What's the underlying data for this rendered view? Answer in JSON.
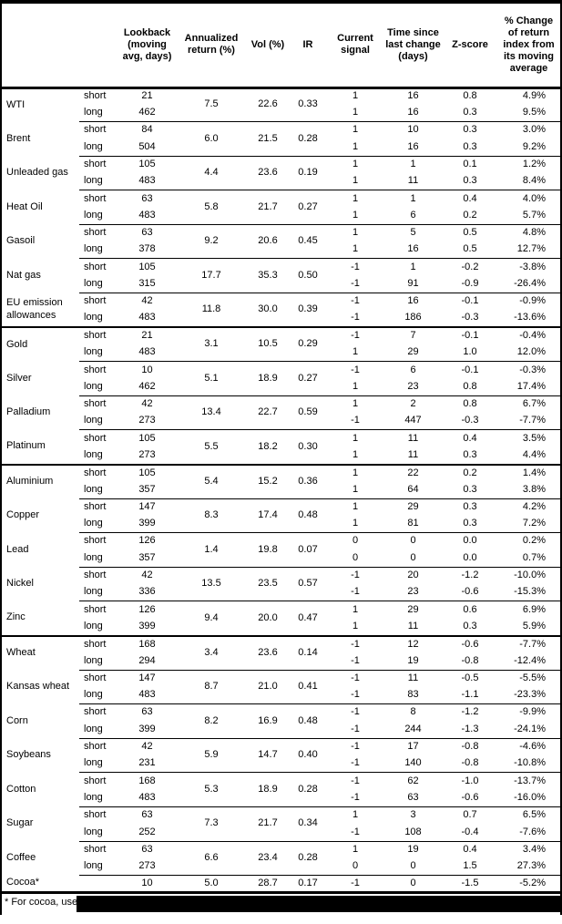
{
  "colors": {
    "text": "#000000",
    "border": "#000000",
    "background": "#ffffff",
    "redaction": "#000000"
  },
  "header": {
    "columns": [
      "",
      "",
      "Lookback (moving avg, days)",
      "Annualized return (%)",
      "Vol (%)",
      "IR",
      "Current signal",
      "Time since last change (days)",
      "Z-score",
      "% Change of return index from its moving average"
    ]
  },
  "sections": [
    {
      "name": "energy",
      "commodities": [
        {
          "name": "WTI",
          "annualized_return_pct": "7.5",
          "vol_pct": "22.6",
          "ir": "0.33",
          "legs": [
            {
              "horizon": "short",
              "lookback": "21",
              "signal": "1",
              "days_since_change": "16",
              "z_score": "0.8",
              "pct_change": "4.9%"
            },
            {
              "horizon": "long",
              "lookback": "462",
              "signal": "1",
              "days_since_change": "16",
              "z_score": "0.3",
              "pct_change": "9.5%"
            }
          ]
        },
        {
          "name": "Brent",
          "annualized_return_pct": "6.0",
          "vol_pct": "21.5",
          "ir": "0.28",
          "legs": [
            {
              "horizon": "short",
              "lookback": "84",
              "signal": "1",
              "days_since_change": "10",
              "z_score": "0.3",
              "pct_change": "3.0%"
            },
            {
              "horizon": "long",
              "lookback": "504",
              "signal": "1",
              "days_since_change": "16",
              "z_score": "0.3",
              "pct_change": "9.2%"
            }
          ]
        },
        {
          "name": "Unleaded gas",
          "annualized_return_pct": "4.4",
          "vol_pct": "23.6",
          "ir": "0.19",
          "legs": [
            {
              "horizon": "short",
              "lookback": "105",
              "signal": "1",
              "days_since_change": "1",
              "z_score": "0.1",
              "pct_change": "1.2%"
            },
            {
              "horizon": "long",
              "lookback": "483",
              "signal": "1",
              "days_since_change": "11",
              "z_score": "0.3",
              "pct_change": "8.4%"
            }
          ]
        },
        {
          "name": "Heat Oil",
          "annualized_return_pct": "5.8",
          "vol_pct": "21.7",
          "ir": "0.27",
          "legs": [
            {
              "horizon": "short",
              "lookback": "63",
              "signal": "1",
              "days_since_change": "1",
              "z_score": "0.4",
              "pct_change": "4.0%"
            },
            {
              "horizon": "long",
              "lookback": "483",
              "signal": "1",
              "days_since_change": "6",
              "z_score": "0.2",
              "pct_change": "5.7%"
            }
          ]
        },
        {
          "name": "Gasoil",
          "annualized_return_pct": "9.2",
          "vol_pct": "20.6",
          "ir": "0.45",
          "legs": [
            {
              "horizon": "short",
              "lookback": "63",
              "signal": "1",
              "days_since_change": "5",
              "z_score": "0.5",
              "pct_change": "4.8%"
            },
            {
              "horizon": "long",
              "lookback": "378",
              "signal": "1",
              "days_since_change": "16",
              "z_score": "0.5",
              "pct_change": "12.7%"
            }
          ]
        },
        {
          "name": "Nat gas",
          "annualized_return_pct": "17.7",
          "vol_pct": "35.3",
          "ir": "0.50",
          "legs": [
            {
              "horizon": "short",
              "lookback": "105",
              "signal": "-1",
              "days_since_change": "1",
              "z_score": "-0.2",
              "pct_change": "-3.8%"
            },
            {
              "horizon": "long",
              "lookback": "315",
              "signal": "-1",
              "days_since_change": "91",
              "z_score": "-0.9",
              "pct_change": "-26.4%"
            }
          ]
        },
        {
          "name": "EU emission allowances",
          "annualized_return_pct": "11.8",
          "vol_pct": "30.0",
          "ir": "0.39",
          "legs": [
            {
              "horizon": "short",
              "lookback": "42",
              "signal": "-1",
              "days_since_change": "16",
              "z_score": "-0.1",
              "pct_change": "-0.9%"
            },
            {
              "horizon": "long",
              "lookback": "483",
              "signal": "-1",
              "days_since_change": "186",
              "z_score": "-0.3",
              "pct_change": "-13.6%"
            }
          ]
        }
      ]
    },
    {
      "name": "precious-metals",
      "commodities": [
        {
          "name": "Gold",
          "annualized_return_pct": "3.1",
          "vol_pct": "10.5",
          "ir": "0.29",
          "legs": [
            {
              "horizon": "short",
              "lookback": "21",
              "signal": "-1",
              "days_since_change": "7",
              "z_score": "-0.1",
              "pct_change": "-0.4%"
            },
            {
              "horizon": "long",
              "lookback": "483",
              "signal": "1",
              "days_since_change": "29",
              "z_score": "1.0",
              "pct_change": "12.0%"
            }
          ]
        },
        {
          "name": "Silver",
          "annualized_return_pct": "5.1",
          "vol_pct": "18.9",
          "ir": "0.27",
          "legs": [
            {
              "horizon": "short",
              "lookback": "10",
              "signal": "-1",
              "days_since_change": "6",
              "z_score": "-0.1",
              "pct_change": "-0.3%"
            },
            {
              "horizon": "long",
              "lookback": "462",
              "signal": "1",
              "days_since_change": "23",
              "z_score": "0.8",
              "pct_change": "17.4%"
            }
          ]
        },
        {
          "name": "Palladium",
          "annualized_return_pct": "13.4",
          "vol_pct": "22.7",
          "ir": "0.59",
          "legs": [
            {
              "horizon": "short",
              "lookback": "42",
              "signal": "1",
              "days_since_change": "2",
              "z_score": "0.8",
              "pct_change": "6.7%"
            },
            {
              "horizon": "long",
              "lookback": "273",
              "signal": "-1",
              "days_since_change": "447",
              "z_score": "-0.3",
              "pct_change": "-7.7%"
            }
          ]
        },
        {
          "name": "Platinum",
          "annualized_return_pct": "5.5",
          "vol_pct": "18.2",
          "ir": "0.30",
          "legs": [
            {
              "horizon": "short",
              "lookback": "105",
              "signal": "1",
              "days_since_change": "11",
              "z_score": "0.4",
              "pct_change": "3.5%"
            },
            {
              "horizon": "long",
              "lookback": "273",
              "signal": "1",
              "days_since_change": "11",
              "z_score": "0.3",
              "pct_change": "4.4%"
            }
          ]
        }
      ]
    },
    {
      "name": "base-metals",
      "commodities": [
        {
          "name": "Aluminium",
          "annualized_return_pct": "5.4",
          "vol_pct": "15.2",
          "ir": "0.36",
          "legs": [
            {
              "horizon": "short",
              "lookback": "105",
              "signal": "1",
              "days_since_change": "22",
              "z_score": "0.2",
              "pct_change": "1.4%"
            },
            {
              "horizon": "long",
              "lookback": "357",
              "signal": "1",
              "days_since_change": "64",
              "z_score": "0.3",
              "pct_change": "3.8%"
            }
          ]
        },
        {
          "name": "Copper",
          "annualized_return_pct": "8.3",
          "vol_pct": "17.4",
          "ir": "0.48",
          "legs": [
            {
              "horizon": "short",
              "lookback": "147",
              "signal": "1",
              "days_since_change": "29",
              "z_score": "0.3",
              "pct_change": "4.2%"
            },
            {
              "horizon": "long",
              "lookback": "399",
              "signal": "1",
              "days_since_change": "81",
              "z_score": "0.3",
              "pct_change": "7.2%"
            }
          ]
        },
        {
          "name": "Lead",
          "annualized_return_pct": "1.4",
          "vol_pct": "19.8",
          "ir": "0.07",
          "legs": [
            {
              "horizon": "short",
              "lookback": "126",
              "signal": "0",
              "days_since_change": "0",
              "z_score": "0.0",
              "pct_change": "0.2%"
            },
            {
              "horizon": "long",
              "lookback": "357",
              "signal": "0",
              "days_since_change": "0",
              "z_score": "0.0",
              "pct_change": "0.7%"
            }
          ]
        },
        {
          "name": "Nickel",
          "annualized_return_pct": "13.5",
          "vol_pct": "23.5",
          "ir": "0.57",
          "legs": [
            {
              "horizon": "short",
              "lookback": "42",
              "signal": "-1",
              "days_since_change": "20",
              "z_score": "-1.2",
              "pct_change": "-10.0%"
            },
            {
              "horizon": "long",
              "lookback": "336",
              "signal": "-1",
              "days_since_change": "23",
              "z_score": "-0.6",
              "pct_change": "-15.3%"
            }
          ]
        },
        {
          "name": "Zinc",
          "annualized_return_pct": "9.4",
          "vol_pct": "20.0",
          "ir": "0.47",
          "legs": [
            {
              "horizon": "short",
              "lookback": "126",
              "signal": "1",
              "days_since_change": "29",
              "z_score": "0.6",
              "pct_change": "6.9%"
            },
            {
              "horizon": "long",
              "lookback": "399",
              "signal": "1",
              "days_since_change": "11",
              "z_score": "0.3",
              "pct_change": "5.9%"
            }
          ]
        }
      ]
    },
    {
      "name": "agriculture",
      "commodities": [
        {
          "name": "Wheat",
          "annualized_return_pct": "3.4",
          "vol_pct": "23.6",
          "ir": "0.14",
          "legs": [
            {
              "horizon": "short",
              "lookback": "168",
              "signal": "-1",
              "days_since_change": "12",
              "z_score": "-0.6",
              "pct_change": "-7.7%"
            },
            {
              "horizon": "long",
              "lookback": "294",
              "signal": "-1",
              "days_since_change": "19",
              "z_score": "-0.8",
              "pct_change": "-12.4%"
            }
          ]
        },
        {
          "name": "Kansas wheat",
          "annualized_return_pct": "8.7",
          "vol_pct": "21.0",
          "ir": "0.41",
          "legs": [
            {
              "horizon": "short",
              "lookback": "147",
              "signal": "-1",
              "days_since_change": "11",
              "z_score": "-0.5",
              "pct_change": "-5.5%"
            },
            {
              "horizon": "long",
              "lookback": "483",
              "signal": "-1",
              "days_since_change": "83",
              "z_score": "-1.1",
              "pct_change": "-23.3%"
            }
          ]
        },
        {
          "name": "Corn",
          "annualized_return_pct": "8.2",
          "vol_pct": "16.9",
          "ir": "0.48",
          "legs": [
            {
              "horizon": "short",
              "lookback": "63",
              "signal": "-1",
              "days_since_change": "8",
              "z_score": "-1.2",
              "pct_change": "-9.9%"
            },
            {
              "horizon": "long",
              "lookback": "399",
              "signal": "-1",
              "days_since_change": "244",
              "z_score": "-1.3",
              "pct_change": "-24.1%"
            }
          ]
        },
        {
          "name": "Soybeans",
          "annualized_return_pct": "5.9",
          "vol_pct": "14.7",
          "ir": "0.40",
          "legs": [
            {
              "horizon": "short",
              "lookback": "42",
              "signal": "-1",
              "days_since_change": "17",
              "z_score": "-0.8",
              "pct_change": "-4.6%"
            },
            {
              "horizon": "long",
              "lookback": "231",
              "signal": "-1",
              "days_since_change": "140",
              "z_score": "-0.8",
              "pct_change": "-10.8%"
            }
          ]
        },
        {
          "name": "Cotton",
          "annualized_return_pct": "5.3",
          "vol_pct": "18.9",
          "ir": "0.28",
          "legs": [
            {
              "horizon": "short",
              "lookback": "168",
              "signal": "-1",
              "days_since_change": "62",
              "z_score": "-1.0",
              "pct_change": "-13.7%"
            },
            {
              "horizon": "long",
              "lookback": "483",
              "signal": "-1",
              "days_since_change": "63",
              "z_score": "-0.6",
              "pct_change": "-16.0%"
            }
          ]
        },
        {
          "name": "Sugar",
          "annualized_return_pct": "7.3",
          "vol_pct": "21.7",
          "ir": "0.34",
          "legs": [
            {
              "horizon": "short",
              "lookback": "63",
              "signal": "1",
              "days_since_change": "3",
              "z_score": "0.7",
              "pct_change": "6.5%"
            },
            {
              "horizon": "long",
              "lookback": "252",
              "signal": "-1",
              "days_since_change": "108",
              "z_score": "-0.4",
              "pct_change": "-7.6%"
            }
          ]
        },
        {
          "name": "Coffee",
          "annualized_return_pct": "6.6",
          "vol_pct": "23.4",
          "ir": "0.28",
          "legs": [
            {
              "horizon": "short",
              "lookback": "63",
              "signal": "1",
              "days_since_change": "19",
              "z_score": "0.4",
              "pct_change": "3.4%"
            },
            {
              "horizon": "long",
              "lookback": "273",
              "signal": "0",
              "days_since_change": "0",
              "z_score": "1.5",
              "pct_change": "27.3%"
            }
          ]
        },
        {
          "name": "Cocoa*",
          "annualized_return_pct": "5.0",
          "vol_pct": "28.7",
          "ir": "0.17",
          "legs": [
            {
              "horizon": "",
              "lookback": "10",
              "signal": "-1",
              "days_since_change": "0",
              "z_score": "-1.5",
              "pct_change": "-5.2%"
            }
          ]
        }
      ]
    }
  ],
  "footnote": {
    "text": "* For cocoa, uses c",
    "redacted": true
  }
}
